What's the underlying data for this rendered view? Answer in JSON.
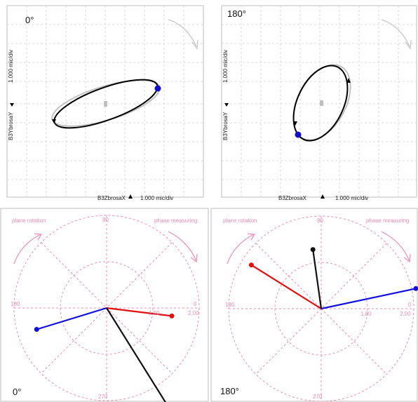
{
  "orbit_0": {
    "angle_label": "0°",
    "x_axis_label": "B3ZbrosaX",
    "x_scale": "1.000 mic/div",
    "y_axis_label": "B3YbrosaY",
    "y_scale": "1.000 mic/div",
    "arrow_icon": "curved-arrow-icon",
    "colors": {
      "orbit": "#000000",
      "reference": "#bdbdbd",
      "keyphasor": "#1010cc",
      "grid": "#cfcfcf"
    }
  },
  "orbit_180": {
    "angle_label": "180°",
    "x_axis_label": "B3ZbrosaX",
    "x_scale": "1.000 mic/div",
    "y_axis_label": "B3YbrosaY",
    "y_scale": "1.000 mic/div",
    "arrow_icon": "curved-arrow-icon",
    "colors": {
      "orbit": "#000000",
      "reference": "#bdbdbd",
      "keyphasor": "#1010cc",
      "grid": "#cfcfcf"
    }
  },
  "polar_0": {
    "angle_label": "0°",
    "plane_rotation_label": "plane rotation",
    "phase_measuring_label": "phase measuring",
    "tick_90": "90",
    "tick_180": "180",
    "tick_270": "270",
    "tick_0": "0",
    "ring_inner": "1.00",
    "ring_outer": "2.00",
    "vectors": [
      {
        "name": "red",
        "color": "#e01010",
        "amplitude": 1.42,
        "angle_deg": 353
      },
      {
        "name": "blue",
        "color": "#1010e0",
        "amplitude": 1.58,
        "angle_deg": 197
      },
      {
        "name": "black",
        "color": "#111111",
        "amplitude": 2.48,
        "angle_deg": 302
      }
    ],
    "colors": {
      "grid": "#f08ab8",
      "arrow": "#f08ab8"
    }
  },
  "polar_180": {
    "angle_label": "180°",
    "plane_rotation_label": "plane rotation",
    "phase_measuring_label": "phase measuring",
    "tick_90": "90",
    "tick_180": "180",
    "tick_270": "270",
    "tick_0": "0",
    "ring_inner": "1.00",
    "ring_outer": "2.00",
    "vectors": [
      {
        "name": "red",
        "color": "#e01010",
        "amplitude": 1.78,
        "angle_deg": 148
      },
      {
        "name": "blue",
        "color": "#1010e0",
        "amplitude": 2.09,
        "angle_deg": 12
      },
      {
        "name": "black",
        "color": "#111111",
        "amplitude": 1.29,
        "angle_deg": 98
      }
    ],
    "colors": {
      "grid": "#f08ab8",
      "arrow": "#f08ab8"
    }
  }
}
